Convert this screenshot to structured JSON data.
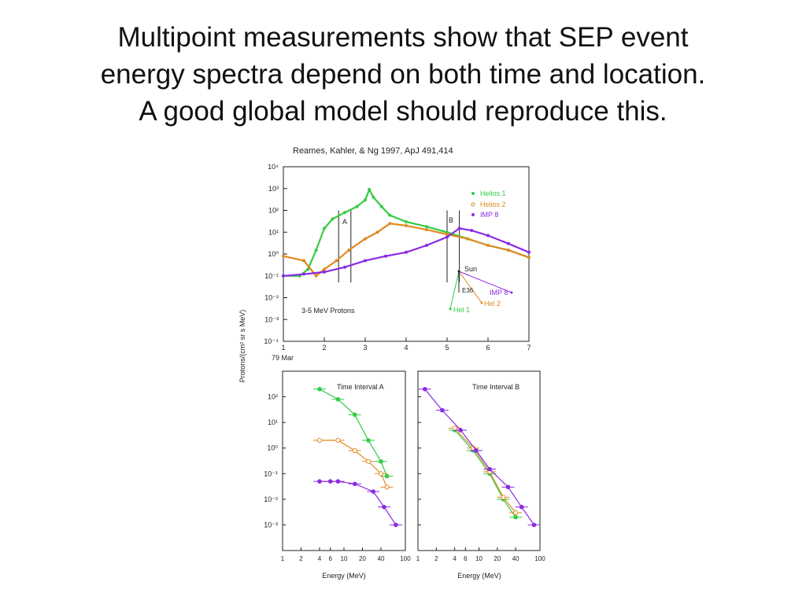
{
  "slide": {
    "title_lines": [
      "Multipoint measurements show that SEP event",
      "energy spectra depend on both time and location.",
      "A good global model should reproduce this."
    ]
  },
  "figure": {
    "citation": "Reames, Kahler, & Ng 1997, ApJ 491,414",
    "y_axis_label": "Protons/(cm² sr s MeV)"
  },
  "colors": {
    "helios1": "#33cc44",
    "helios2": "#e08a20",
    "imp8": "#8a2be2",
    "axis": "#222222"
  },
  "chart_data": [
    {
      "type": "line",
      "id": "time-profile",
      "x_tick_labels": [
        "1",
        "2",
        "3",
        "4",
        "5",
        "6",
        "7"
      ],
      "x_sub_label": "79 Mar",
      "xlim": [
        1,
        7
      ],
      "y_scale": "log",
      "ylim": [
        0.0001,
        10000
      ],
      "y_tick_labels": [
        "10⁴",
        "10³",
        "10²",
        "10¹",
        "10⁰",
        "10⁻¹",
        "10⁻²",
        "10⁻³",
        "10⁻⁴"
      ],
      "annotation": "3-5 MeV Protons",
      "interval_labels": [
        "A",
        "B"
      ],
      "intervals": {
        "A": [
          2.35,
          2.65
        ],
        "B": [
          5.0,
          5.3
        ]
      },
      "legend": {
        "position": "top-right",
        "entries": [
          "Helios 1",
          "Helios 2",
          "IMP 8"
        ]
      },
      "series": [
        {
          "name": "Helios 1",
          "x": [
            1.0,
            1.4,
            1.6,
            1.8,
            2.0,
            2.2,
            2.5,
            2.8,
            3.0,
            3.1,
            3.2,
            3.4,
            3.6,
            4.0,
            4.5,
            5.0,
            5.5,
            6.0,
            6.5,
            7.0
          ],
          "values": [
            0.1,
            0.1,
            0.2,
            1.5,
            15,
            40,
            80,
            150,
            300,
            900,
            400,
            150,
            60,
            30,
            18,
            10,
            5,
            2.5,
            1.5,
            0.7
          ]
        },
        {
          "name": "Helios 2",
          "x": [
            1.0,
            1.5,
            1.8,
            2.0,
            2.3,
            2.6,
            3.0,
            3.3,
            3.6,
            4.0,
            4.5,
            5.0,
            5.5,
            6.0,
            6.5,
            7.0
          ],
          "values": [
            0.8,
            0.5,
            0.1,
            0.2,
            0.5,
            1.5,
            5,
            10,
            25,
            20,
            13,
            8,
            5,
            2.5,
            1.5,
            0.7
          ]
        },
        {
          "name": "IMP 8",
          "x": [
            1.0,
            1.5,
            2.0,
            2.5,
            3.0,
            3.5,
            4.0,
            4.5,
            5.0,
            5.3,
            5.6,
            6.0,
            6.5,
            7.0
          ],
          "values": [
            0.1,
            0.12,
            0.15,
            0.25,
            0.5,
            0.8,
            1.2,
            2.5,
            6,
            15,
            12,
            7,
            3,
            1.2
          ]
        }
      ],
      "inset": {
        "labels": [
          "Sun",
          "E36",
          "IMP 8",
          "Hel 2",
          "Hel 1"
        ]
      }
    },
    {
      "type": "line",
      "id": "interval-a",
      "title": "Time Interval A",
      "xlabel": "Energy (MeV)",
      "x_scale": "log",
      "xlim": [
        1,
        100
      ],
      "x_tick_labels": [
        "1",
        "2",
        "4",
        "6",
        "10",
        "20",
        "40",
        "100"
      ],
      "y_scale": "log",
      "ylim": [
        0.0001,
        1000
      ],
      "y_tick_labels": [
        "10²",
        "10¹",
        "10⁰",
        "10⁻¹",
        "10⁻²",
        "10⁻³"
      ],
      "series": [
        {
          "name": "Helios 1",
          "x": [
            4,
            8,
            15,
            25,
            40,
            50
          ],
          "values": [
            200,
            80,
            20,
            2,
            0.3,
            0.08
          ]
        },
        {
          "name": "Helios 2",
          "x": [
            4,
            8,
            15,
            25,
            40,
            50
          ],
          "values": [
            2,
            2,
            0.8,
            0.3,
            0.1,
            0.03
          ]
        },
        {
          "name": "IMP 8",
          "x": [
            4,
            6,
            8,
            15,
            30,
            45,
            70
          ],
          "values": [
            0.05,
            0.05,
            0.05,
            0.04,
            0.02,
            0.005,
            0.001
          ]
        }
      ]
    },
    {
      "type": "line",
      "id": "interval-b",
      "title": "Time Interval B",
      "xlabel": "Energy (MeV)",
      "x_scale": "log",
      "xlim": [
        1,
        100
      ],
      "x_tick_labels": [
        "1",
        "2",
        "4",
        "6",
        "10",
        "20",
        "40",
        "100"
      ],
      "y_scale": "log",
      "ylim": [
        0.0001,
        1000
      ],
      "series": [
        {
          "name": "Helios 1",
          "x": [
            4,
            8,
            15,
            25,
            40
          ],
          "values": [
            5,
            0.8,
            0.1,
            0.01,
            0.002
          ]
        },
        {
          "name": "Helios 2",
          "x": [
            4,
            8,
            15,
            25,
            40
          ],
          "values": [
            6,
            1,
            0.12,
            0.012,
            0.003
          ]
        },
        {
          "name": "IMP 8",
          "x": [
            1.3,
            2.5,
            5,
            9,
            15,
            30,
            50,
            80
          ],
          "values": [
            200,
            30,
            5,
            0.8,
            0.15,
            0.03,
            0.005,
            0.001
          ]
        }
      ]
    }
  ]
}
